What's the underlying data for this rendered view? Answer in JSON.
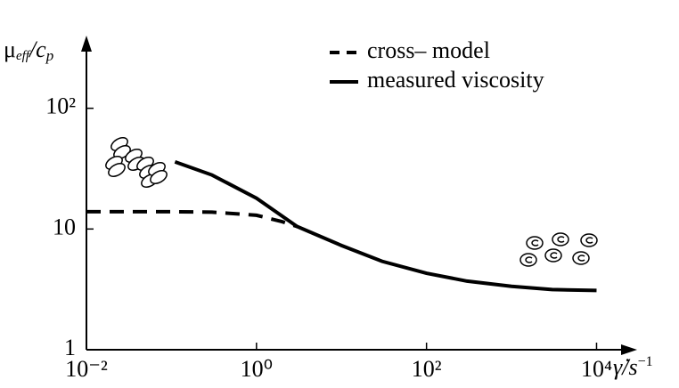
{
  "chart_data": {
    "type": "line",
    "ylabel_parts": [
      "μ",
      "eff",
      "/c",
      "p"
    ],
    "xlabel_parts": [
      "γ̇",
      "/s",
      "−1"
    ],
    "log_x": true,
    "log_y": true,
    "grid": false,
    "legend": "upper right",
    "xlim": [
      0.01,
      30000
    ],
    "ylim": [
      1,
      400
    ],
    "xticks": [
      {
        "value": 0.01,
        "label": "10⁻²"
      },
      {
        "value": 1,
        "label": "10⁰"
      },
      {
        "value": 100,
        "label": "10²"
      },
      {
        "value": 10000,
        "label": "10⁴"
      }
    ],
    "yticks": [
      1,
      10,
      {
        "value": 100,
        "label": "10²"
      }
    ],
    "series": [
      {
        "name": "cross– model",
        "color": "#000000",
        "style": "dashed",
        "x": [
          0.01,
          0.1,
          0.3,
          1,
          2,
          3
        ],
        "values": [
          13.9,
          13.9,
          13.8,
          13,
          11.5,
          10.5
        ]
      },
      {
        "name": "measured viscosity",
        "color": "#000000",
        "style": "solid",
        "x": [
          0.11,
          0.3,
          1,
          3,
          10,
          30,
          100,
          300,
          1000,
          3000,
          10000
        ],
        "values": [
          36,
          28,
          18,
          10.5,
          7.3,
          5.4,
          4.3,
          3.7,
          3.35,
          3.15,
          3.1
        ]
      }
    ]
  }
}
